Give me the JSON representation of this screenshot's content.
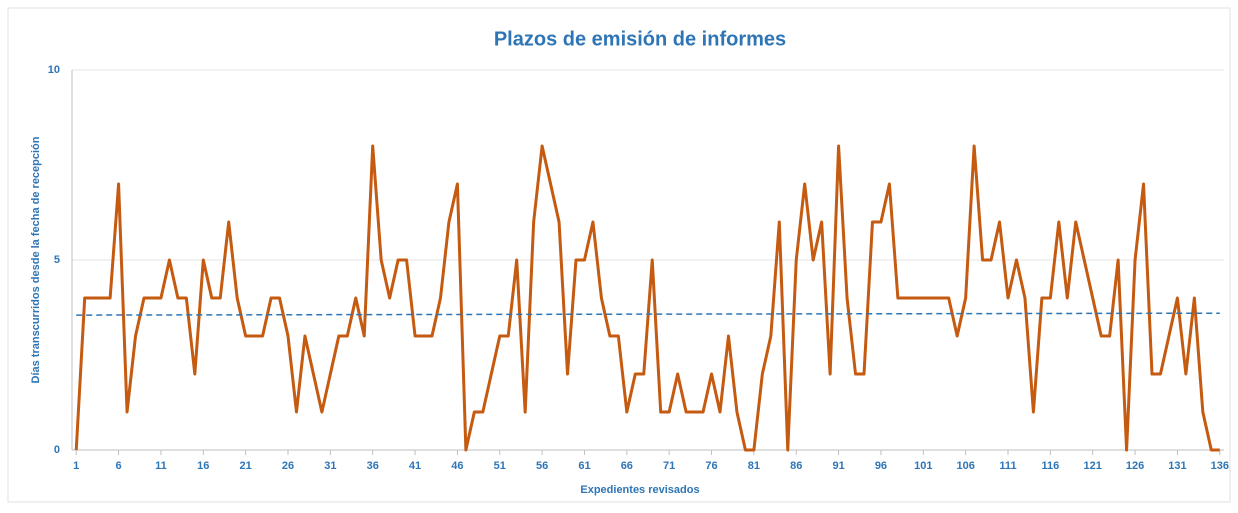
{
  "chart_data": {
    "type": "line",
    "title": "Plazos de emisión de informes",
    "x_label": "Expedientes revisados",
    "y_label": "Días transcurridos desde la fecha de recepción",
    "x": [
      1,
      2,
      3,
      4,
      5,
      6,
      7,
      8,
      9,
      10,
      11,
      12,
      13,
      14,
      15,
      16,
      17,
      18,
      19,
      20,
      21,
      22,
      23,
      24,
      25,
      26,
      27,
      28,
      29,
      30,
      31,
      32,
      33,
      34,
      35,
      36,
      37,
      38,
      39,
      40,
      41,
      42,
      43,
      44,
      45,
      46,
      47,
      48,
      49,
      50,
      51,
      52,
      53,
      54,
      55,
      56,
      57,
      58,
      59,
      60,
      61,
      62,
      63,
      64,
      65,
      66,
      67,
      68,
      69,
      70,
      71,
      72,
      73,
      74,
      75,
      76,
      77,
      78,
      79,
      80,
      81,
      82,
      83,
      84,
      85,
      86,
      87,
      88,
      89,
      90,
      91,
      92,
      93,
      94,
      95,
      96,
      97,
      98,
      99,
      100,
      101,
      102,
      103,
      104,
      105,
      106,
      107,
      108,
      109,
      110,
      111,
      112,
      113,
      114,
      115,
      116,
      117,
      118,
      119,
      120,
      121,
      122,
      123,
      124,
      125,
      126,
      127,
      128,
      129,
      130,
      131,
      132,
      133,
      134,
      135,
      136
    ],
    "series": [
      {
        "color": "#c55a11",
        "values": [
          0,
          4,
          4,
          4,
          4,
          7,
          1,
          3,
          4,
          4,
          4,
          5,
          4,
          4,
          2,
          5,
          4,
          4,
          6,
          4,
          3,
          3,
          3,
          4,
          4,
          3,
          1,
          3,
          2,
          1,
          2,
          3,
          3,
          4,
          3,
          8,
          5,
          4,
          5,
          5,
          3,
          3,
          3,
          4,
          6,
          7,
          0,
          1,
          1,
          2,
          3,
          3,
          5,
          1,
          6,
          8,
          7,
          6,
          2,
          5,
          5,
          6,
          4,
          3,
          3,
          1,
          2,
          2,
          5,
          1,
          1,
          2,
          1,
          1,
          1,
          2,
          1,
          3,
          1,
          0,
          0,
          2,
          3,
          6,
          0,
          5,
          7,
          5,
          6,
          2,
          8,
          4,
          2,
          2,
          6,
          6,
          7,
          4,
          4,
          4,
          4,
          4,
          4,
          4,
          3,
          4,
          8,
          5,
          5,
          6,
          4,
          5,
          4,
          1,
          4,
          4,
          6,
          4,
          6,
          5,
          4,
          3,
          3,
          5,
          0,
          5,
          7,
          2,
          2,
          3,
          4,
          2,
          4,
          1,
          0,
          0
        ]
      }
    ],
    "trend": {
      "color": "#2e75b6",
      "x": [
        1,
        136
      ],
      "values": [
        3.55,
        3.6
      ]
    },
    "xlim": [
      0.5,
      136.5
    ],
    "xticks": [
      1,
      6,
      11,
      16,
      21,
      26,
      31,
      36,
      41,
      46,
      51,
      56,
      61,
      66,
      71,
      76,
      81,
      86,
      91,
      96,
      101,
      106,
      111,
      116,
      121,
      126,
      131,
      136
    ],
    "ylim": [
      0,
      10
    ],
    "yticks": [
      0,
      5,
      10
    ],
    "grid": true
  }
}
